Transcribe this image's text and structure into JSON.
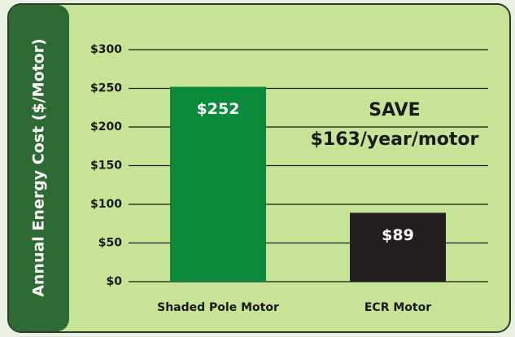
{
  "chart_data": {
    "type": "bar",
    "y_label": "Annual Energy Cost ($/Motor)",
    "categories": [
      "Shaded Pole Motor",
      "ECR Motor"
    ],
    "values": [
      252,
      89
    ],
    "value_labels": [
      "$252",
      "$89"
    ],
    "colors": [
      "#0b8a3b",
      "#231f20"
    ],
    "ylim": [
      0,
      300
    ],
    "yticks": [
      {
        "value": 0,
        "label": "$0"
      },
      {
        "value": 50,
        "label": "$50"
      },
      {
        "value": 100,
        "label": "$100"
      },
      {
        "value": 150,
        "label": "$150"
      },
      {
        "value": 200,
        "label": "$200"
      },
      {
        "value": 250,
        "label": "$250"
      },
      {
        "value": 300,
        "label": "$300"
      }
    ],
    "grid": true,
    "annotations": [
      "SAVE",
      "$163/year/motor"
    ]
  }
}
